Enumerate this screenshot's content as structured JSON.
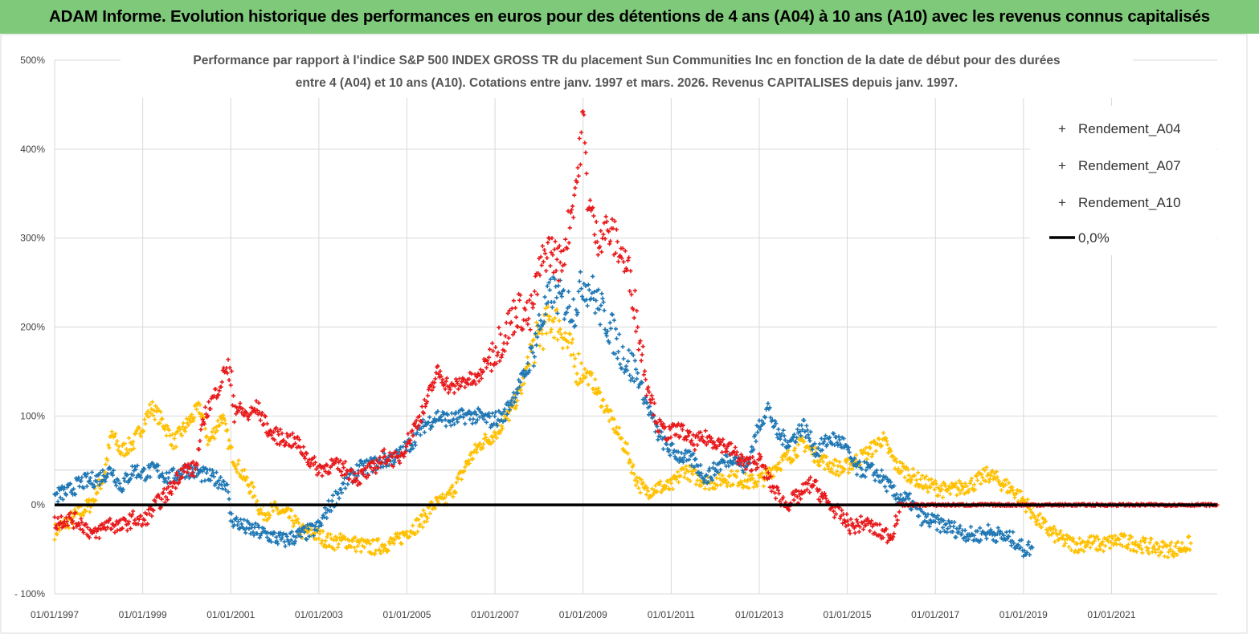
{
  "banner": {
    "title": "ADAM Informe. Evolution historique des performances en euros pour des détentions de 4 ans (A04) à 10 ans (A10) avec les revenus connus capitalisés"
  },
  "chart_data": {
    "type": "scatter",
    "title_line1": "Performance par rapport à l'indice S&P 500 INDEX GROSS TR  du placement Sun Communities Inc en fonction de la date de début pour des durées",
    "title_line2": "entre 4 (A04) et 10 ans (A10). Cotations entre janv. 1997 et mars. 2026. Revenus CAPITALISES depuis janv. 1997.",
    "xlabel": "",
    "ylabel": "",
    "xlim": [
      1997.0,
      2023.4
    ],
    "ylim": [
      -100,
      500
    ],
    "yticks": [
      "- 100%",
      "0%",
      "100%",
      "200%",
      "300%",
      "400%",
      "500%"
    ],
    "xticks": [
      "01/01/1997",
      "01/01/1999",
      "01/01/2001",
      "01/01/2003",
      "01/01/2005",
      "01/01/2007",
      "01/01/2009",
      "01/01/2011",
      "01/01/2013",
      "01/01/2015",
      "01/01/2017",
      "01/01/2019",
      "01/01/2021"
    ],
    "grid": true,
    "legend_position": "top-right",
    "series": [
      {
        "name": "Rendement_A04",
        "color": "#ffc000",
        "marker": "+",
        "points": [
          [
            1997.0,
            -30
          ],
          [
            1997.4,
            -15
          ],
          [
            1997.8,
            0
          ],
          [
            1998.1,
            30
          ],
          [
            1998.3,
            80
          ],
          [
            1998.5,
            60
          ],
          [
            1998.8,
            70
          ],
          [
            1999.0,
            90
          ],
          [
            1999.2,
            110
          ],
          [
            1999.5,
            90
          ],
          [
            1999.7,
            70
          ],
          [
            2000.0,
            90
          ],
          [
            2000.3,
            110
          ],
          [
            2000.5,
            70
          ],
          [
            2000.8,
            100
          ],
          [
            2001.0,
            60
          ],
          [
            2001.2,
            40
          ],
          [
            2001.5,
            15
          ],
          [
            2001.7,
            -10
          ],
          [
            2002.0,
            -5
          ],
          [
            2002.2,
            -10
          ],
          [
            2002.4,
            -15
          ],
          [
            2002.6,
            -30
          ],
          [
            2002.8,
            -30
          ],
          [
            2003.0,
            -35
          ],
          [
            2003.3,
            -42
          ],
          [
            2003.6,
            -40
          ],
          [
            2003.9,
            -45
          ],
          [
            2004.2,
            -48
          ],
          [
            2004.5,
            -45
          ],
          [
            2004.8,
            -40
          ],
          [
            2005.0,
            -30
          ],
          [
            2005.3,
            -20
          ],
          [
            2005.6,
            0
          ],
          [
            2005.9,
            5
          ],
          [
            2006.2,
            30
          ],
          [
            2006.4,
            50
          ],
          [
            2006.7,
            70
          ],
          [
            2007.0,
            80
          ],
          [
            2007.3,
            100
          ],
          [
            2007.6,
            130
          ],
          [
            2007.8,
            170
          ],
          [
            2008.0,
            190
          ],
          [
            2008.3,
            210
          ],
          [
            2008.5,
            200
          ],
          [
            2008.8,
            160
          ],
          [
            2009.0,
            150
          ],
          [
            2009.2,
            140
          ],
          [
            2009.5,
            110
          ],
          [
            2009.8,
            80
          ],
          [
            2010.0,
            60
          ],
          [
            2010.2,
            30
          ],
          [
            2010.4,
            15
          ],
          [
            2010.7,
            20
          ],
          [
            2011.0,
            20
          ],
          [
            2011.3,
            40
          ],
          [
            2011.6,
            30
          ],
          [
            2011.9,
            25
          ],
          [
            2012.2,
            30
          ],
          [
            2012.5,
            30
          ],
          [
            2012.8,
            25
          ],
          [
            2013.1,
            30
          ],
          [
            2013.4,
            45
          ],
          [
            2013.7,
            55
          ],
          [
            2014.0,
            70
          ],
          [
            2014.3,
            55
          ],
          [
            2014.6,
            45
          ],
          [
            2014.9,
            40
          ],
          [
            2015.2,
            50
          ],
          [
            2015.5,
            60
          ],
          [
            2015.8,
            75
          ],
          [
            2016.1,
            45
          ],
          [
            2016.4,
            35
          ],
          [
            2016.7,
            25
          ],
          [
            2017.0,
            20
          ],
          [
            2017.3,
            15
          ],
          [
            2017.6,
            20
          ],
          [
            2017.9,
            25
          ],
          [
            2018.2,
            35
          ],
          [
            2018.5,
            25
          ],
          [
            2018.8,
            15
          ],
          [
            2019.0,
            5
          ],
          [
            2019.3,
            -15
          ],
          [
            2019.6,
            -30
          ],
          [
            2019.9,
            -40
          ],
          [
            2020.2,
            -45
          ],
          [
            2020.5,
            -42
          ],
          [
            2020.8,
            -45
          ],
          [
            2021.1,
            -40
          ],
          [
            2021.4,
            -42
          ],
          [
            2021.7,
            -45
          ],
          [
            2022.0,
            -48
          ],
          [
            2022.3,
            -50
          ],
          [
            2022.6,
            -48
          ],
          [
            2022.8,
            -43
          ]
        ]
      },
      {
        "name": "Rendement_A07",
        "color": "#1f77b4",
        "marker": "+",
        "points": [
          [
            1997.0,
            10
          ],
          [
            1997.3,
            15
          ],
          [
            1997.6,
            25
          ],
          [
            1998.0,
            30
          ],
          [
            1998.3,
            40
          ],
          [
            1998.5,
            20
          ],
          [
            1998.8,
            40
          ],
          [
            1999.0,
            35
          ],
          [
            1999.3,
            40
          ],
          [
            1999.6,
            30
          ],
          [
            2000.0,
            40
          ],
          [
            2000.3,
            35
          ],
          [
            2000.6,
            30
          ],
          [
            2000.9,
            25
          ],
          [
            2001.0,
            -15
          ],
          [
            2001.3,
            -25
          ],
          [
            2001.6,
            -30
          ],
          [
            2001.9,
            -35
          ],
          [
            2002.2,
            -40
          ],
          [
            2002.5,
            -35
          ],
          [
            2002.8,
            -30
          ],
          [
            2003.0,
            -25
          ],
          [
            2003.2,
            -5
          ],
          [
            2003.4,
            10
          ],
          [
            2003.6,
            25
          ],
          [
            2003.9,
            40
          ],
          [
            2004.2,
            45
          ],
          [
            2004.5,
            50
          ],
          [
            2004.8,
            55
          ],
          [
            2005.1,
            70
          ],
          [
            2005.4,
            90
          ],
          [
            2005.7,
            100
          ],
          [
            2006.0,
            95
          ],
          [
            2006.3,
            100
          ],
          [
            2006.6,
            100
          ],
          [
            2006.9,
            95
          ],
          [
            2007.2,
            100
          ],
          [
            2007.5,
            130
          ],
          [
            2007.8,
            160
          ],
          [
            2008.0,
            200
          ],
          [
            2008.3,
            240
          ],
          [
            2008.5,
            230
          ],
          [
            2008.8,
            220
          ],
          [
            2009.0,
            250
          ],
          [
            2009.2,
            240
          ],
          [
            2009.5,
            210
          ],
          [
            2009.8,
            180
          ],
          [
            2010.0,
            160
          ],
          [
            2010.2,
            150
          ],
          [
            2010.4,
            120
          ],
          [
            2010.7,
            80
          ],
          [
            2010.9,
            65
          ],
          [
            2011.2,
            55
          ],
          [
            2011.5,
            50
          ],
          [
            2011.8,
            30
          ],
          [
            2012.1,
            45
          ],
          [
            2012.4,
            55
          ],
          [
            2012.7,
            40
          ],
          [
            2013.0,
            90
          ],
          [
            2013.2,
            110
          ],
          [
            2013.4,
            80
          ],
          [
            2013.7,
            70
          ],
          [
            2014.0,
            90
          ],
          [
            2014.3,
            60
          ],
          [
            2014.6,
            75
          ],
          [
            2014.9,
            70
          ],
          [
            2015.2,
            40
          ],
          [
            2015.5,
            40
          ],
          [
            2015.8,
            30
          ],
          [
            2016.1,
            10
          ],
          [
            2016.4,
            5
          ],
          [
            2016.7,
            -15
          ],
          [
            2017.0,
            -20
          ],
          [
            2017.3,
            -25
          ],
          [
            2017.6,
            -30
          ],
          [
            2017.9,
            -35
          ],
          [
            2018.2,
            -30
          ],
          [
            2018.5,
            -35
          ],
          [
            2018.8,
            -40
          ],
          [
            2019.0,
            -50
          ],
          [
            2019.2,
            -48
          ]
        ]
      },
      {
        "name": "Rendement_A10",
        "color": "#e8191b",
        "marker": "+",
        "points": [
          [
            1997.0,
            -20
          ],
          [
            1997.3,
            -15
          ],
          [
            1997.6,
            -20
          ],
          [
            1997.9,
            -35
          ],
          [
            1998.2,
            -20
          ],
          [
            1998.5,
            -25
          ],
          [
            1998.8,
            -15
          ],
          [
            1999.0,
            -20
          ],
          [
            1999.3,
            0
          ],
          [
            1999.6,
            15
          ],
          [
            1999.9,
            40
          ],
          [
            2000.2,
            40
          ],
          [
            2000.4,
            100
          ],
          [
            2000.6,
            120
          ],
          [
            2000.8,
            140
          ],
          [
            2000.9,
            160
          ],
          [
            2001.1,
            110
          ],
          [
            2001.4,
            100
          ],
          [
            2001.6,
            110
          ],
          [
            2001.9,
            80
          ],
          [
            2002.2,
            75
          ],
          [
            2002.5,
            70
          ],
          [
            2002.8,
            50
          ],
          [
            2003.0,
            40
          ],
          [
            2003.3,
            45
          ],
          [
            2003.6,
            40
          ],
          [
            2003.9,
            30
          ],
          [
            2004.2,
            40
          ],
          [
            2004.5,
            55
          ],
          [
            2004.8,
            50
          ],
          [
            2005.1,
            80
          ],
          [
            2005.4,
            110
          ],
          [
            2005.7,
            150
          ],
          [
            2006.0,
            130
          ],
          [
            2006.3,
            140
          ],
          [
            2006.6,
            140
          ],
          [
            2006.9,
            170
          ],
          [
            2007.2,
            190
          ],
          [
            2007.5,
            220
          ],
          [
            2007.8,
            210
          ],
          [
            2008.0,
            260
          ],
          [
            2008.2,
            290
          ],
          [
            2008.5,
            270
          ],
          [
            2008.7,
            320
          ],
          [
            2008.9,
            380
          ],
          [
            2009.0,
            440
          ],
          [
            2009.1,
            350
          ],
          [
            2009.3,
            300
          ],
          [
            2009.5,
            310
          ],
          [
            2009.7,
            300
          ],
          [
            2009.9,
            280
          ],
          [
            2010.1,
            250
          ],
          [
            2010.3,
            180
          ],
          [
            2010.5,
            130
          ],
          [
            2010.7,
            90
          ],
          [
            2010.9,
            80
          ],
          [
            2011.2,
            85
          ],
          [
            2011.5,
            70
          ],
          [
            2011.8,
            75
          ],
          [
            2012.1,
            70
          ],
          [
            2012.4,
            60
          ],
          [
            2012.7,
            45
          ],
          [
            2013.0,
            50
          ],
          [
            2013.3,
            20
          ],
          [
            2013.6,
            0
          ],
          [
            2013.9,
            10
          ],
          [
            2014.2,
            25
          ],
          [
            2014.5,
            5
          ],
          [
            2014.8,
            -10
          ],
          [
            2015.1,
            -25
          ],
          [
            2015.4,
            -20
          ],
          [
            2015.7,
            -30
          ],
          [
            2016.0,
            -35
          ],
          [
            2016.2,
            0
          ],
          [
            2017.0,
            0
          ],
          [
            2018.0,
            0
          ],
          [
            2019.0,
            0
          ],
          [
            2020.0,
            0
          ],
          [
            2021.0,
            0
          ],
          [
            2022.0,
            0
          ],
          [
            2023.0,
            0
          ],
          [
            2023.4,
            0
          ]
        ]
      }
    ],
    "reference_line": {
      "name": "0,0%",
      "value": 0,
      "color": "#000000"
    }
  }
}
